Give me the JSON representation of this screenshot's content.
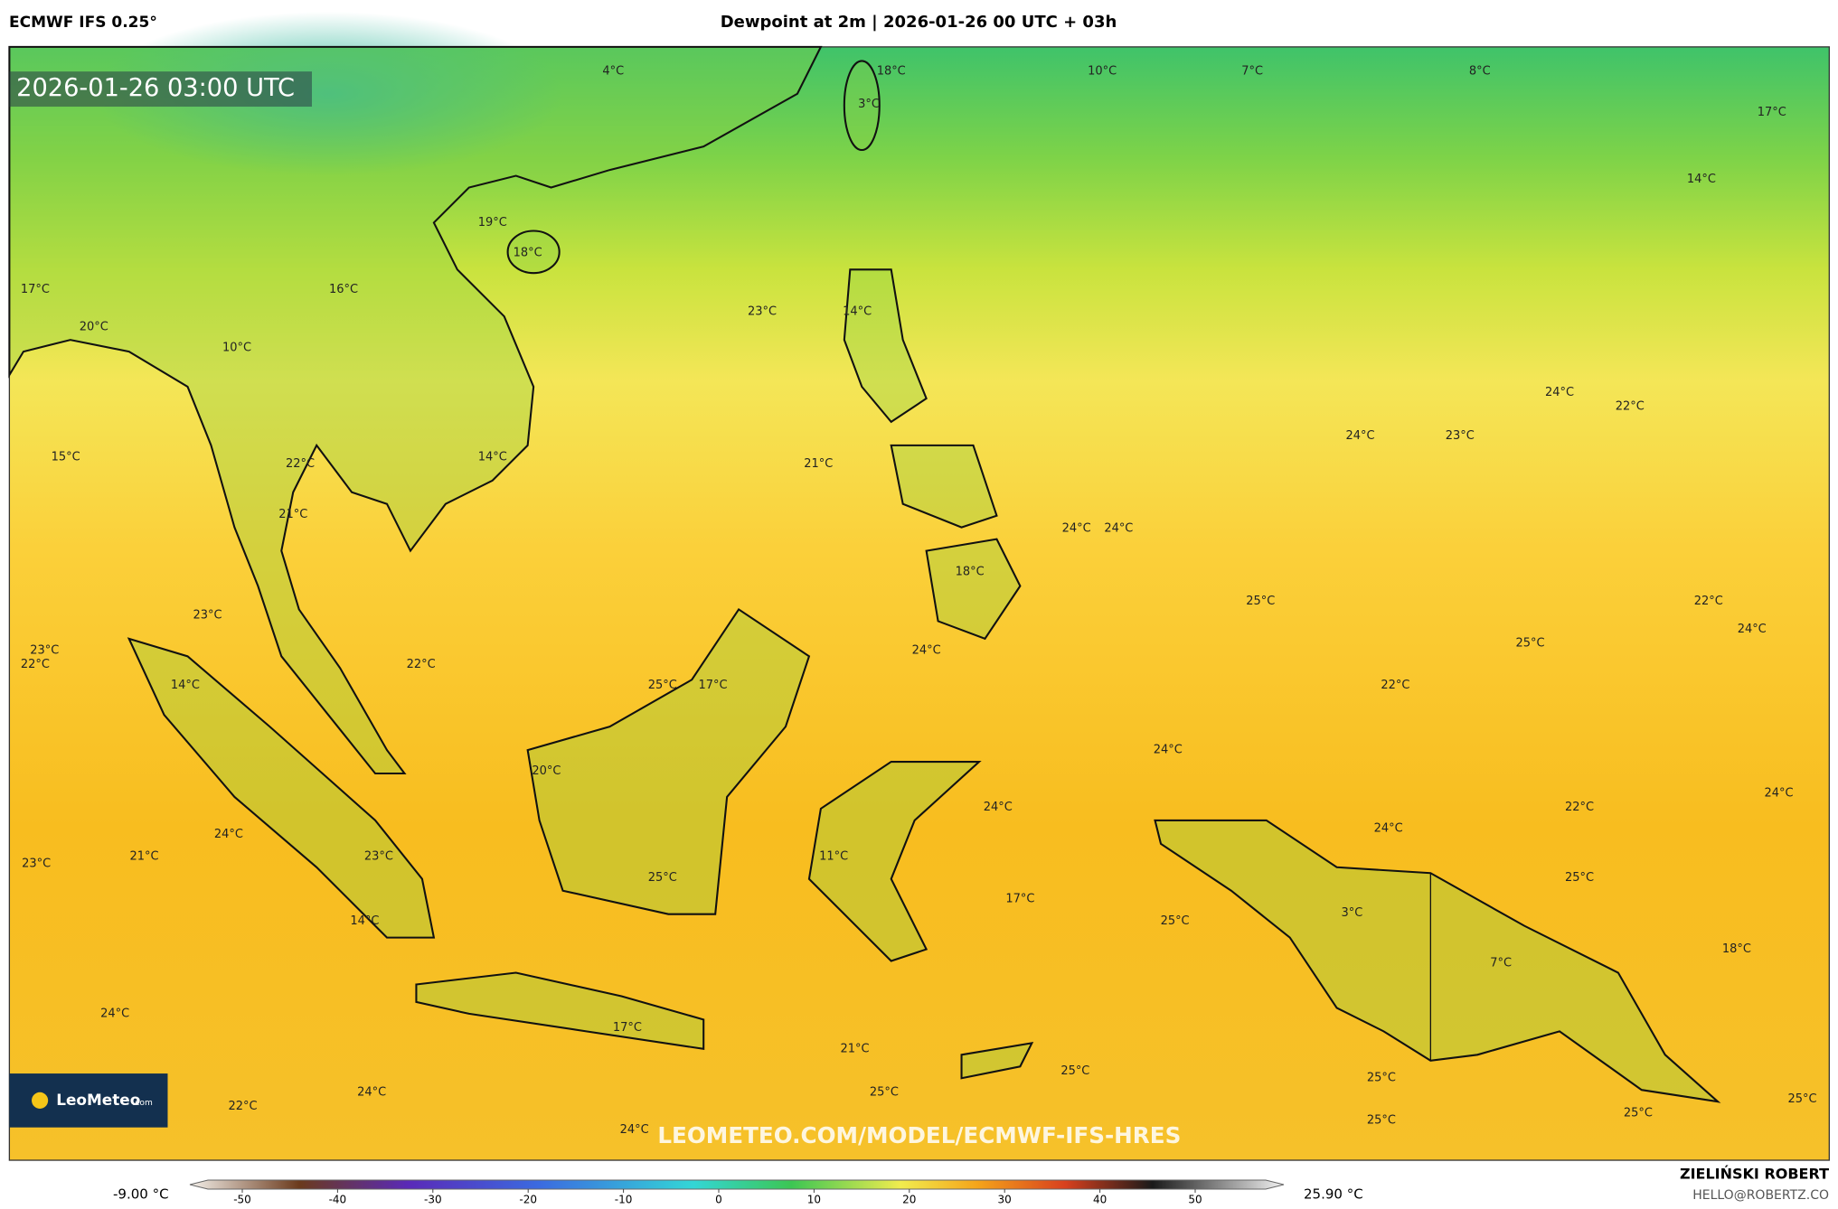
{
  "header": {
    "left": "ECMWF IFS 0.25°",
    "center": "Dewpoint at 2m | 2026-01-26 00 UTC + 03h"
  },
  "map": {
    "timestamp": "2026-01-26 03:00 UTC",
    "watermark": "LEOMETEO.COM/MODEL/ECMWF-IFS-HRES",
    "logo": {
      "name": "LeoMeteo",
      "suffix": ".com"
    },
    "labels": [
      "4°C",
      "18°C",
      "10°C",
      "7°C",
      "8°C",
      "17°C",
      "14°C",
      "3°C",
      "19°C",
      "18°C",
      "17°C",
      "16°C",
      "23°C",
      "14°C",
      "20°C",
      "10°C",
      "24°C",
      "22°C",
      "24°C",
      "23°C",
      "15°C",
      "14°C",
      "22°C",
      "21°C",
      "21°C",
      "24°C",
      "24°C",
      "18°C",
      "25°C",
      "22°C",
      "23°C",
      "24°C",
      "25°C",
      "23°C",
      "22°C",
      "24°C",
      "22°C",
      "14°C",
      "25°C",
      "17°C",
      "22°C",
      "24°C",
      "20°C",
      "24°C",
      "22°C",
      "24°C",
      "24°C",
      "24°C",
      "11°C",
      "23°C",
      "21°C",
      "23°C",
      "25°C",
      "25°C",
      "17°C",
      "3°C",
      "25°C",
      "14°C",
      "18°C",
      "7°C",
      "24°C",
      "17°C",
      "21°C",
      "25°C",
      "25°C",
      "22°C",
      "24°C",
      "25°C",
      "25°C",
      "25°C",
      "25°C",
      "24°C"
    ]
  },
  "colorbar": {
    "min_label": "-9.00 °C",
    "max_label": "25.90 °C",
    "ticks": [
      -50,
      -40,
      -30,
      -20,
      -10,
      0,
      10,
      20,
      30,
      40,
      50
    ]
  },
  "footer": {
    "author": "ZIELIŃSKI ROBERT",
    "email": "HELLO@ROBERTZ.CO"
  }
}
